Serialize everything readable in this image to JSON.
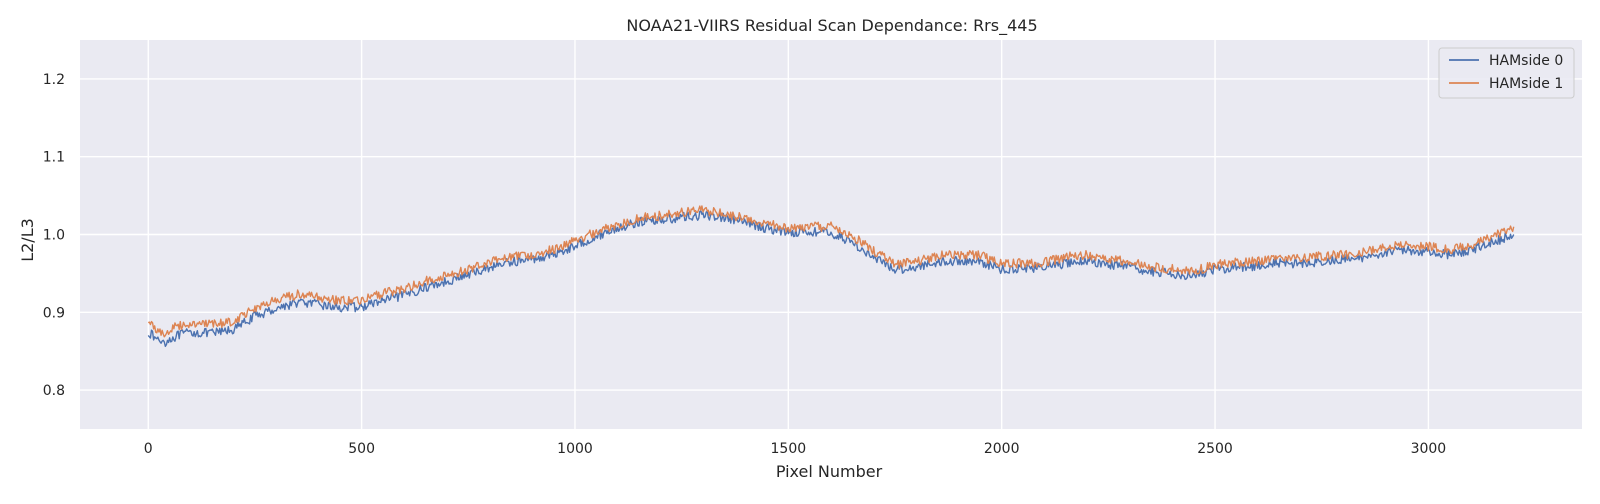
{
  "chart_data": {
    "type": "line",
    "title": "NOAA21-VIIRS Residual Scan Dependance: Rrs_445",
    "xlabel": "Pixel Number",
    "ylabel": "L2/L3",
    "xlim": [
      -160,
      3360
    ],
    "ylim": [
      0.75,
      1.25
    ],
    "xticks": [
      0,
      500,
      1000,
      1500,
      2000,
      2500,
      3000
    ],
    "yticks": [
      0.8,
      0.9,
      1.0,
      1.1,
      1.2
    ],
    "xtick_labels": [
      "0",
      "500",
      "1000",
      "1500",
      "2000",
      "2500",
      "3000"
    ],
    "ytick_labels": [
      "0.8",
      "0.9",
      "1.0",
      "1.1",
      "1.2"
    ],
    "grid": true,
    "legend_position": "top-right",
    "background": "#EAEAF2",
    "series": [
      {
        "name": "HAMside 0",
        "color": "#4C72B0",
        "x": [
          0,
          20,
          40,
          60,
          80,
          100,
          150,
          200,
          250,
          300,
          350,
          400,
          450,
          500,
          550,
          600,
          650,
          700,
          750,
          800,
          850,
          900,
          950,
          1000,
          1050,
          1100,
          1150,
          1200,
          1250,
          1300,
          1350,
          1400,
          1450,
          1500,
          1550,
          1600,
          1650,
          1700,
          1750,
          1800,
          1850,
          1900,
          1950,
          2000,
          2050,
          2100,
          2150,
          2200,
          2250,
          2300,
          2350,
          2400,
          2450,
          2500,
          2550,
          2600,
          2650,
          2700,
          2750,
          2800,
          2850,
          2900,
          2950,
          3000,
          3050,
          3100,
          3150,
          3200
        ],
        "y": [
          0.875,
          0.865,
          0.862,
          0.868,
          0.872,
          0.874,
          0.873,
          0.878,
          0.895,
          0.905,
          0.913,
          0.91,
          0.906,
          0.907,
          0.915,
          0.922,
          0.932,
          0.94,
          0.948,
          0.958,
          0.965,
          0.968,
          0.975,
          0.985,
          0.998,
          1.008,
          1.016,
          1.019,
          1.022,
          1.025,
          1.022,
          1.015,
          1.008,
          1.003,
          1.004,
          1.002,
          0.99,
          0.97,
          0.955,
          0.958,
          0.965,
          0.966,
          0.965,
          0.955,
          0.957,
          0.958,
          0.963,
          0.966,
          0.962,
          0.958,
          0.952,
          0.95,
          0.947,
          0.955,
          0.958,
          0.96,
          0.963,
          0.963,
          0.965,
          0.968,
          0.97,
          0.978,
          0.98,
          0.978,
          0.974,
          0.98,
          0.99,
          1.0
        ]
      },
      {
        "name": "HAMside 1",
        "color": "#DD8452",
        "x": [
          0,
          20,
          40,
          60,
          80,
          100,
          150,
          200,
          250,
          300,
          350,
          400,
          450,
          500,
          550,
          600,
          650,
          700,
          750,
          800,
          850,
          900,
          950,
          1000,
          1050,
          1100,
          1150,
          1200,
          1250,
          1300,
          1350,
          1400,
          1450,
          1500,
          1550,
          1600,
          1650,
          1700,
          1750,
          1800,
          1850,
          1900,
          1950,
          2000,
          2050,
          2100,
          2150,
          2200,
          2250,
          2300,
          2350,
          2400,
          2450,
          2500,
          2550,
          2600,
          2650,
          2700,
          2750,
          2800,
          2850,
          2900,
          2950,
          3000,
          3050,
          3100,
          3150,
          3200
        ],
        "y": [
          0.888,
          0.878,
          0.872,
          0.88,
          0.884,
          0.886,
          0.884,
          0.889,
          0.906,
          0.915,
          0.923,
          0.919,
          0.915,
          0.915,
          0.924,
          0.931,
          0.94,
          0.948,
          0.955,
          0.966,
          0.972,
          0.974,
          0.981,
          0.992,
          1.003,
          1.013,
          1.021,
          1.024,
          1.028,
          1.031,
          1.027,
          1.02,
          1.014,
          1.008,
          1.01,
          1.01,
          0.998,
          0.979,
          0.962,
          0.966,
          0.973,
          0.974,
          0.973,
          0.962,
          0.963,
          0.964,
          0.971,
          0.974,
          0.969,
          0.964,
          0.958,
          0.956,
          0.953,
          0.961,
          0.964,
          0.966,
          0.97,
          0.97,
          0.972,
          0.974,
          0.977,
          0.985,
          0.987,
          0.985,
          0.98,
          0.986,
          0.997,
          1.01
        ]
      }
    ]
  }
}
